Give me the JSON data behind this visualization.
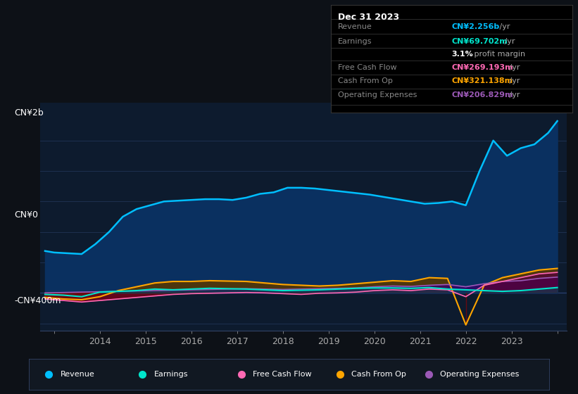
{
  "bg_color": "#0d1117",
  "plot_bg_color": "#0d1b2e",
  "grid_color": "#1e3050",
  "title": "Dec 31 2023",
  "ylabel_top": "CN¥2b",
  "ylabel_mid": "CN¥0",
  "ylabel_bot": "-CN¥400m",
  "ylim": [
    -500,
    2500
  ],
  "xlim": [
    2012.7,
    2024.2
  ],
  "revenue": {
    "x": [
      2012.8,
      2013.0,
      2013.3,
      2013.6,
      2013.9,
      2014.2,
      2014.5,
      2014.8,
      2015.1,
      2015.4,
      2015.7,
      2016.0,
      2016.3,
      2016.6,
      2016.9,
      2017.2,
      2017.5,
      2017.8,
      2018.1,
      2018.4,
      2018.7,
      2019.0,
      2019.3,
      2019.6,
      2019.9,
      2020.2,
      2020.5,
      2020.8,
      2021.1,
      2021.4,
      2021.7,
      2022.0,
      2022.3,
      2022.6,
      2022.9,
      2023.2,
      2023.5,
      2023.8,
      2024.0
    ],
    "y": [
      550,
      530,
      520,
      510,
      640,
      800,
      1000,
      1100,
      1150,
      1200,
      1210,
      1220,
      1230,
      1230,
      1220,
      1250,
      1300,
      1320,
      1380,
      1380,
      1370,
      1350,
      1330,
      1310,
      1290,
      1260,
      1230,
      1200,
      1170,
      1180,
      1200,
      1150,
      1600,
      2000,
      1800,
      1900,
      1950,
      2100,
      2256
    ],
    "color": "#00bfff",
    "fill_color": "#0a3060",
    "lw": 1.8
  },
  "earnings": {
    "x": [
      2012.8,
      2013.2,
      2013.6,
      2014.0,
      2014.4,
      2014.8,
      2015.2,
      2015.6,
      2016.0,
      2016.4,
      2016.8,
      2017.2,
      2017.6,
      2018.0,
      2018.4,
      2018.8,
      2019.2,
      2019.6,
      2020.0,
      2020.4,
      2020.8,
      2021.2,
      2021.6,
      2022.0,
      2022.4,
      2022.8,
      2023.2,
      2023.6,
      2024.0
    ],
    "y": [
      -20,
      -30,
      -50,
      10,
      20,
      30,
      50,
      40,
      50,
      60,
      55,
      50,
      40,
      30,
      35,
      40,
      50,
      60,
      65,
      65,
      60,
      70,
      50,
      40,
      30,
      20,
      30,
      50,
      70
    ],
    "color": "#00e5cc",
    "fill_color": "#004040",
    "lw": 1.5
  },
  "free_cash_flow": {
    "x": [
      2012.8,
      2013.2,
      2013.6,
      2014.0,
      2014.4,
      2014.8,
      2015.2,
      2015.6,
      2016.0,
      2016.4,
      2016.8,
      2017.2,
      2017.6,
      2018.0,
      2018.4,
      2018.8,
      2019.2,
      2019.6,
      2020.0,
      2020.4,
      2020.8,
      2021.2,
      2021.6,
      2022.0,
      2022.4,
      2022.8,
      2023.2,
      2023.6,
      2024.0
    ],
    "y": [
      -80,
      -100,
      -120,
      -100,
      -80,
      -60,
      -40,
      -20,
      -10,
      -5,
      0,
      5,
      0,
      -10,
      -20,
      -5,
      0,
      10,
      30,
      40,
      30,
      50,
      40,
      -50,
      100,
      150,
      200,
      250,
      269
    ],
    "color": "#ff69b4",
    "lw": 1.2
  },
  "cash_from_op": {
    "x": [
      2012.8,
      2013.2,
      2013.6,
      2014.0,
      2014.4,
      2014.8,
      2015.2,
      2015.6,
      2016.0,
      2016.4,
      2016.8,
      2017.2,
      2017.6,
      2018.0,
      2018.4,
      2018.8,
      2019.2,
      2019.6,
      2020.0,
      2020.4,
      2020.8,
      2021.2,
      2021.6,
      2022.0,
      2022.4,
      2022.8,
      2023.2,
      2023.6,
      2024.0
    ],
    "y": [
      -60,
      -80,
      -90,
      -50,
      30,
      80,
      130,
      150,
      150,
      160,
      155,
      150,
      130,
      110,
      100,
      90,
      100,
      120,
      140,
      160,
      150,
      200,
      190,
      -420,
      100,
      200,
      250,
      300,
      321
    ],
    "color": "#ffa500",
    "lw": 1.5
  },
  "operating_expenses": {
    "x": [
      2012.8,
      2013.2,
      2013.6,
      2014.0,
      2014.4,
      2014.8,
      2015.2,
      2015.6,
      2016.0,
      2016.4,
      2016.8,
      2017.2,
      2017.6,
      2018.0,
      2018.4,
      2018.8,
      2019.2,
      2019.6,
      2020.0,
      2020.4,
      2020.8,
      2021.2,
      2021.6,
      2022.0,
      2022.4,
      2022.8,
      2023.2,
      2023.6,
      2024.0
    ],
    "y": [
      0,
      5,
      10,
      15,
      20,
      25,
      30,
      35,
      40,
      45,
      50,
      55,
      50,
      45,
      50,
      55,
      60,
      65,
      80,
      90,
      85,
      100,
      110,
      80,
      120,
      150,
      160,
      190,
      207
    ],
    "color": "#9b59b6",
    "lw": 1.2
  },
  "row_data": [
    {
      "label": "Revenue",
      "val": "CN¥2.256b",
      "suffix": " /yr",
      "color": "#00bfff"
    },
    {
      "label": "Earnings",
      "val": "CN¥69.702m",
      "suffix": " /yr",
      "color": "#00e5cc"
    },
    {
      "label": "",
      "val": "3.1%",
      "suffix": " profit margin",
      "color": "#ffffff"
    },
    {
      "label": "Free Cash Flow",
      "val": "CN¥269.193m",
      "suffix": " /yr",
      "color": "#ff69b4"
    },
    {
      "label": "Cash From Op",
      "val": "CN¥321.138m",
      "suffix": " /yr",
      "color": "#ffa500"
    },
    {
      "label": "Operating Expenses",
      "val": "CN¥206.829m",
      "suffix": " /yr",
      "color": "#9b59b6"
    }
  ],
  "legend_items": [
    {
      "label": "Revenue",
      "color": "#00bfff"
    },
    {
      "label": "Earnings",
      "color": "#00e5cc"
    },
    {
      "label": "Free Cash Flow",
      "color": "#ff69b4"
    },
    {
      "label": "Cash From Op",
      "color": "#ffa500"
    },
    {
      "label": "Operating Expenses",
      "color": "#9b59b6"
    }
  ]
}
